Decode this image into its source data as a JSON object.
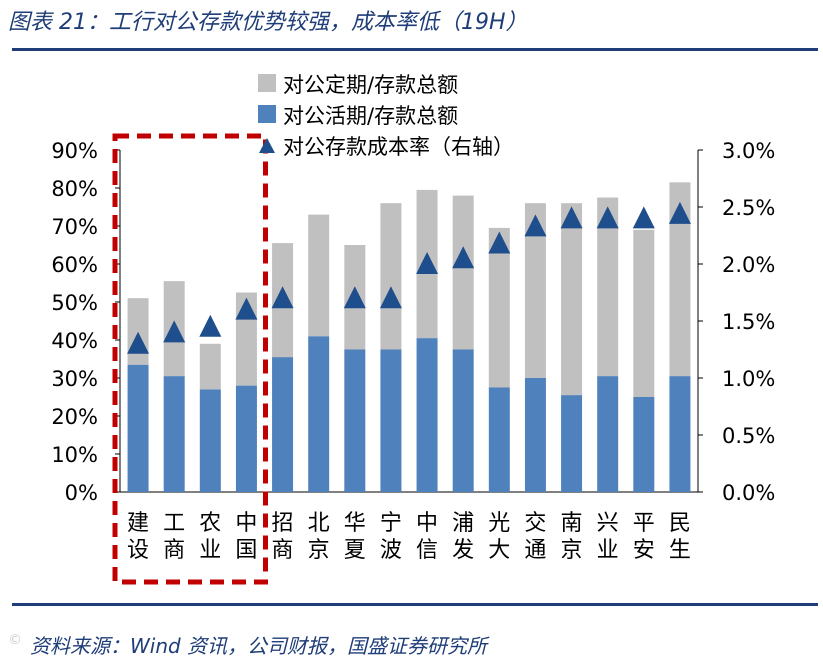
{
  "header": {
    "title": "图表 21：工行对公存款优势较强，成本率低（19H）"
  },
  "footer": {
    "source": "资料来源：Wind 资讯，公司财报，国盛证券研究所",
    "watermark": "©"
  },
  "chart_data": {
    "type": "bar",
    "stacked": true,
    "title": "工行对公存款优势较强，成本率低（19H）",
    "categories": [
      "建设",
      "工商",
      "农业",
      "中国",
      "招商",
      "北京",
      "华夏",
      "宁波",
      "中信",
      "浦发",
      "光大",
      "交通",
      "南京",
      "兴业",
      "平安",
      "民生"
    ],
    "series": [
      {
        "name": "对公活期/存款总额",
        "axis": "left",
        "color": "#4f81bd",
        "values": [
          33.5,
          30.5,
          27,
          28,
          35.5,
          41,
          37.5,
          37.5,
          40.5,
          37.5,
          27.5,
          30,
          25.5,
          30.5,
          25,
          30.5
        ]
      },
      {
        "name": "对公定期/存款总额",
        "axis": "left",
        "color": "#c0c0c0",
        "values": [
          17.5,
          25,
          12,
          24.5,
          30,
          32,
          27.5,
          38.5,
          39,
          40.5,
          42,
          46,
          50.5,
          47,
          44,
          51
        ]
      },
      {
        "name": "对公存款成本率（右轴）",
        "axis": "right",
        "type": "marker",
        "marker": "triangle",
        "color": "#1f4e8c",
        "values": [
          1.3,
          1.4,
          1.45,
          1.6,
          1.7,
          null,
          1.7,
          1.7,
          2.0,
          2.05,
          2.18,
          2.33,
          2.4,
          2.4,
          2.4,
          2.44
        ]
      }
    ],
    "legend_order": [
      "对公定期/存款总额",
      "对公活期/存款总额",
      "对公存款成本率（右轴）"
    ],
    "y_left": {
      "min": 0,
      "max": 90,
      "step": 10,
      "ticks": [
        "0%",
        "10%",
        "20%",
        "30%",
        "40%",
        "50%",
        "60%",
        "70%",
        "80%",
        "90%"
      ]
    },
    "y_right": {
      "min": 0,
      "max": 3.0,
      "step": 0.5,
      "ticks": [
        "0.0%",
        "0.5%",
        "1.0%",
        "1.5%",
        "2.0%",
        "2.5%",
        "3.0%"
      ]
    },
    "highlight": {
      "categories": [
        "建设",
        "工商",
        "农业",
        "中国"
      ],
      "color": "#c00000",
      "style": "dashed"
    },
    "legend_position": "top-center",
    "grid": false
  }
}
